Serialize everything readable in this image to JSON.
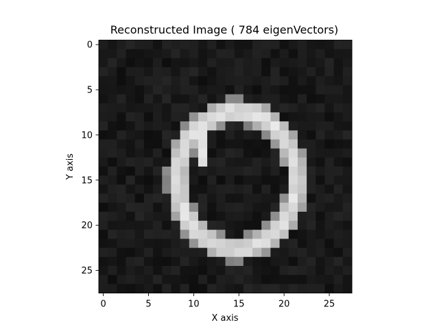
{
  "chart_data": {
    "type": "heatmap",
    "title": "Reconstructed Image ( 784 eigenVectors)",
    "xlabel": "X axis",
    "ylabel": "Y axis",
    "colormap": "gray",
    "rows": 28,
    "cols": 28,
    "xlim": [
      -0.5,
      27.5
    ],
    "ylim": [
      27.5,
      -0.5
    ],
    "xticks": [
      0,
      5,
      10,
      15,
      20,
      25
    ],
    "yticks": [
      0,
      5,
      10,
      15,
      20,
      25
    ],
    "ring": {
      "cx": 14.8,
      "cy": 15.0,
      "rx": 6.6,
      "ry": 7.6,
      "thickness": 1.3
    },
    "inner_stroke": {
      "x": 11.0,
      "y_from": 8.5,
      "y_to": 13.0,
      "width": 0.9
    },
    "background_level": 0.1,
    "stroke_level": 0.88
  }
}
